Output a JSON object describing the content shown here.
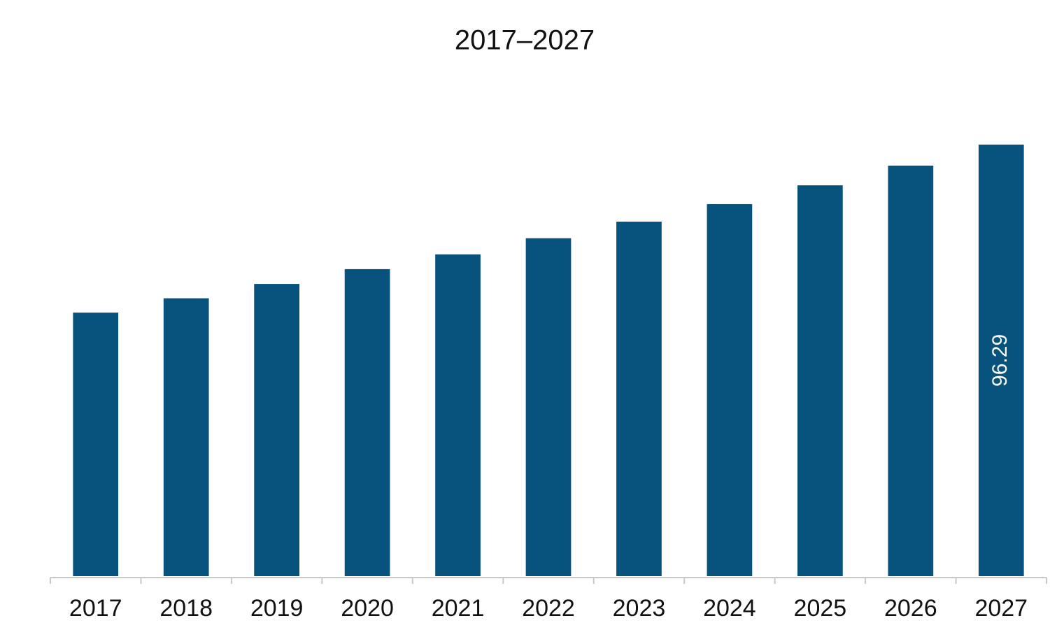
{
  "chart_data": {
    "type": "bar",
    "title": "2017–2027",
    "categories": [
      "2017",
      "2018",
      "2019",
      "2020",
      "2021",
      "2022",
      "2023",
      "2024",
      "2025",
      "2026",
      "2027"
    ],
    "values": [
      58.8,
      62.0,
      65.2,
      68.5,
      71.8,
      75.4,
      79.1,
      83.0,
      87.2,
      91.6,
      96.29
    ],
    "value_labels": [
      null,
      null,
      null,
      null,
      null,
      null,
      null,
      null,
      null,
      null,
      "96.29"
    ],
    "color": "#08527e",
    "ylim": [
      0,
      100
    ]
  }
}
